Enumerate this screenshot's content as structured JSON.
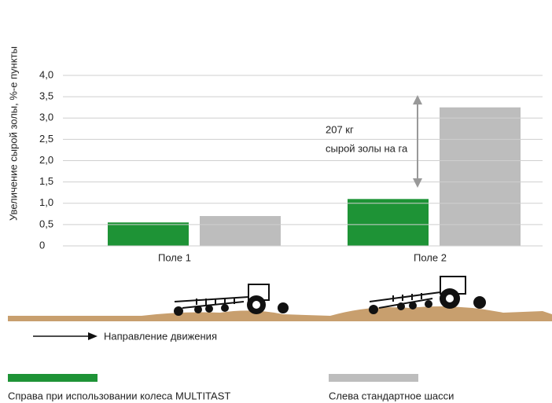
{
  "chart_data": {
    "type": "bar",
    "y_label": "Увеличение сырой золы, %-е пункты",
    "categories": [
      "Поле 1",
      "Поле 2"
    ],
    "series": [
      {
        "name": "Справа при использовании колеса MULTITAST",
        "color": "#1e9336",
        "values": [
          0.55,
          1.1
        ]
      },
      {
        "name": "Слева стандартное шасси",
        "color": "#bdbdbd",
        "values": [
          0.7,
          3.25
        ]
      }
    ],
    "ylim": [
      0,
      4
    ],
    "yticks": [
      0,
      {
        "value": 0.5,
        "label": "0,5"
      },
      {
        "value": 1,
        "label": "1,0"
      },
      {
        "value": 1.5,
        "label": "1,5"
      },
      {
        "value": 2,
        "label": "2,0"
      },
      {
        "value": 2.5,
        "label": "2,5"
      },
      {
        "value": 3,
        "label": "3,0"
      },
      {
        "value": 3.5,
        "label": "3,5"
      },
      {
        "value": 4,
        "label": "4,0"
      }
    ],
    "grid": true,
    "annotation": [
      "207 кг",
      "сырой золы на га"
    ],
    "direction_label": "Направление движения"
  }
}
